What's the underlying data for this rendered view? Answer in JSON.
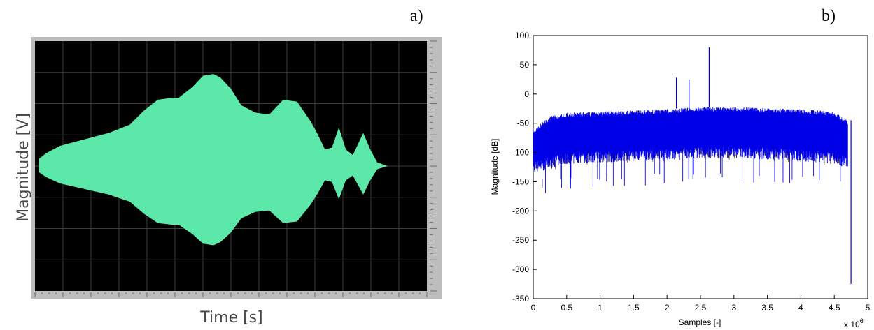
{
  "panels": {
    "a": {
      "label": "a)"
    },
    "b": {
      "label": "b)"
    }
  },
  "colors": {
    "scope_background": "#000000",
    "scope_frame": "#bdbdbd",
    "scope_grid": "#3c3c3c",
    "envelope_fill": "#5ce8a8",
    "spectrum_line": "#0000e6",
    "spectrum_shadow": "#8c7a10"
  },
  "chart_data": [
    {
      "id": "a",
      "type": "area",
      "title": "",
      "xlabel": "Time [s]",
      "ylabel": "Magnitude [V]",
      "grid": true,
      "description_of_series": "symmetric amplitude envelope of signal, normalized to peak = 1",
      "series": [
        {
          "x": [
            0,
            0.02,
            0.06,
            0.12,
            0.2,
            0.26,
            0.3,
            0.34,
            0.38,
            0.4,
            0.44,
            0.47,
            0.5,
            0.52,
            0.55,
            0.58,
            0.62,
            0.66,
            0.7,
            0.74,
            0.78,
            0.8,
            0.82,
            0.84,
            0.86,
            0.88,
            0.9,
            0.91,
            0.93,
            0.95,
            0.97,
            1.0
          ],
          "values": [
            0.08,
            0.14,
            0.22,
            0.28,
            0.36,
            0.45,
            0.6,
            0.72,
            0.74,
            0.74,
            0.86,
            0.98,
            1.0,
            0.96,
            0.84,
            0.66,
            0.58,
            0.56,
            0.72,
            0.7,
            0.48,
            0.34,
            0.18,
            0.2,
            0.42,
            0.18,
            0.12,
            0.2,
            0.36,
            0.18,
            0.04,
            0.0
          ]
        }
      ]
    },
    {
      "id": "b",
      "type": "line",
      "title": "",
      "xlabel": "Samples [-]",
      "ylabel": "Magnitude [dB]",
      "xlim": [
        0,
        5
      ],
      "ylim": [
        -350,
        100
      ],
      "x_ticks": [
        "0",
        "0.5",
        "1",
        "1.5",
        "2",
        "2.5",
        "3",
        "3.5",
        "4",
        "4.5",
        "5"
      ],
      "y_ticks": [
        "100",
        "50",
        "0",
        "-50",
        "-100",
        "-150",
        "-200",
        "-250",
        "-300",
        "-350"
      ],
      "x_multiplier_label": "x 10",
      "x_multiplier_exponent": "6",
      "grid": false,
      "series": [
        {
          "x": [
            0,
            0.25,
            0.5,
            1.0,
            1.5,
            2.0,
            2.5,
            3.0,
            3.5,
            4.0,
            4.5,
            4.7
          ],
          "upper_envelope": [
            -60,
            -38,
            -32,
            -30,
            -28,
            -26,
            -22,
            -22,
            -24,
            -26,
            -30,
            -45
          ],
          "lower_envelope": [
            -155,
            -148,
            -140,
            -138,
            -135,
            -135,
            -130,
            -130,
            -132,
            -135,
            -140,
            -148
          ]
        }
      ],
      "spikes": [
        {
          "x": 2.14,
          "y": 28
        },
        {
          "x": 2.33,
          "y": 25
        },
        {
          "x": 2.63,
          "y": 80
        }
      ],
      "end_dropout": {
        "x": 4.75,
        "y": -325
      }
    }
  ]
}
